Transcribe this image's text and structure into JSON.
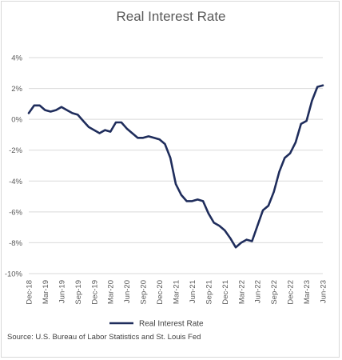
{
  "chart_data": {
    "type": "line",
    "title": "Real Interest Rate",
    "xlabel": "",
    "ylabel": "",
    "ylim": [
      -10,
      4
    ],
    "y_ticks": [
      4,
      2,
      0,
      -2,
      -4,
      -6,
      -8,
      -10
    ],
    "y_tick_labels": [
      "4%",
      "2%",
      "0%",
      "-2%",
      "-4%",
      "-6%",
      "-8%",
      "-10%"
    ],
    "x_tick_labels": [
      "Dec-18",
      "Mar-19",
      "Jun-19",
      "Sep-19",
      "Dec-19",
      "Mar-20",
      "Jun-20",
      "Sep-20",
      "Dec-20",
      "Mar-21",
      "Jun-21",
      "Sep-21",
      "Dec-21",
      "Mar-22",
      "Jun-22",
      "Sep-22",
      "Dec-22",
      "Mar-23",
      "Jun-23"
    ],
    "grid": true,
    "legend_position": "bottom",
    "series": [
      {
        "name": "Real Interest Rate",
        "color": "#1f2d5c",
        "x": [
          "2018-12",
          "2019-01",
          "2019-02",
          "2019-03",
          "2019-04",
          "2019-05",
          "2019-06",
          "2019-07",
          "2019-08",
          "2019-09",
          "2019-10",
          "2019-11",
          "2019-12",
          "2020-01",
          "2020-02",
          "2020-03",
          "2020-04",
          "2020-05",
          "2020-06",
          "2020-07",
          "2020-08",
          "2020-09",
          "2020-10",
          "2020-11",
          "2020-12",
          "2021-01",
          "2021-02",
          "2021-03",
          "2021-04",
          "2021-05",
          "2021-06",
          "2021-07",
          "2021-08",
          "2021-09",
          "2021-10",
          "2021-11",
          "2021-12",
          "2022-01",
          "2022-02",
          "2022-03",
          "2022-04",
          "2022-05",
          "2022-06",
          "2022-07",
          "2022-08",
          "2022-09",
          "2022-10",
          "2022-11",
          "2022-12",
          "2023-01",
          "2023-02",
          "2023-03",
          "2023-04",
          "2023-05",
          "2023-06"
        ],
        "values": [
          0.4,
          0.9,
          0.9,
          0.6,
          0.5,
          0.6,
          0.8,
          0.6,
          0.4,
          0.3,
          -0.1,
          -0.5,
          -0.7,
          -0.9,
          -0.7,
          -0.8,
          -0.2,
          -0.2,
          -0.6,
          -0.9,
          -1.2,
          -1.2,
          -1.1,
          -1.2,
          -1.3,
          -1.6,
          -2.5,
          -4.2,
          -4.9,
          -5.3,
          -5.3,
          -5.2,
          -5.3,
          -6.1,
          -6.7,
          -6.9,
          -7.2,
          -7.7,
          -8.3,
          -8.0,
          -7.8,
          -7.9,
          -6.9,
          -5.9,
          -5.6,
          -4.7,
          -3.4,
          -2.5,
          -2.2,
          -1.5,
          -0.3,
          -0.1,
          1.2,
          2.1,
          2.2
        ]
      }
    ],
    "source": "Source: U.S. Bureau of Labor Statistics and St. Louis Fed"
  }
}
